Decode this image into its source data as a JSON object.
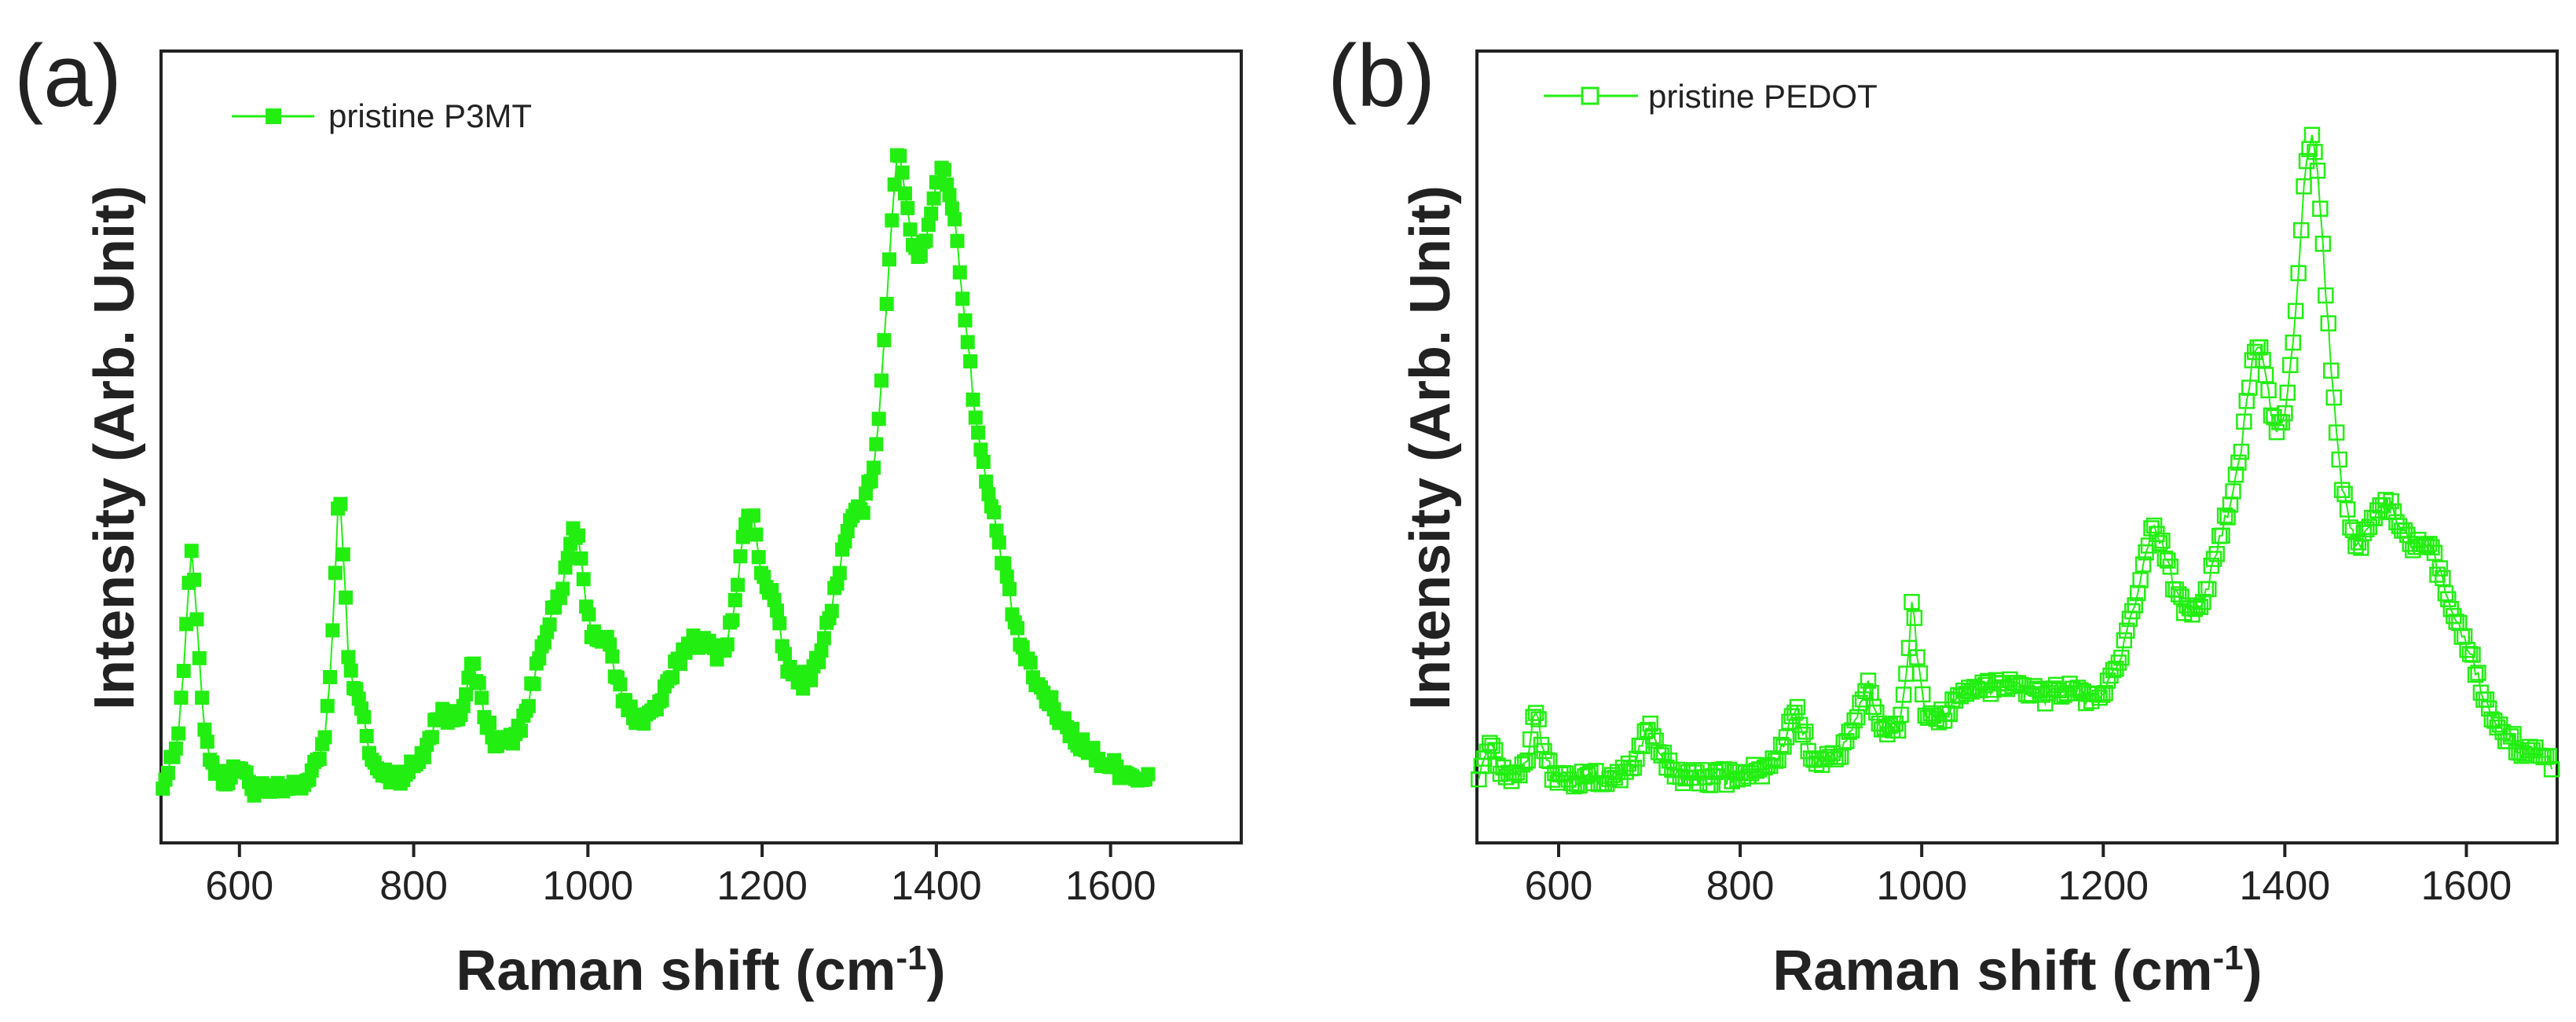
{
  "colors": {
    "series": "#22ee11",
    "axis": "#222222",
    "background": "#ffffff"
  },
  "chart_data": [
    {
      "panel_label": "(a)",
      "type": "scatter",
      "marker": "filled-square",
      "connect": true,
      "legend": {
        "label": "pristine P3MT",
        "position": "top-left"
      },
      "xlabel": "Raman shift (cm",
      "xlabel_sup": "-1",
      "xlabel_close": ")",
      "ylabel": "Intensity (Arb. Unit)",
      "xlim": [
        510,
        1750
      ],
      "ylim": [
        -0.5,
        10
      ],
      "xticks": [
        "600",
        "800",
        "1000",
        "1200",
        "1400",
        "1600"
      ],
      "x_end": 1645,
      "peaks": [
        [
          545,
          3.2,
          10
        ],
        [
          600,
          0.35,
          8
        ],
        [
          715,
          3.8,
          9
        ],
        [
          738,
          0.8,
          8
        ],
        [
          830,
          0.8,
          20
        ],
        [
          868,
          1.3,
          15
        ],
        [
          955,
          1.6,
          25
        ],
        [
          985,
          2.4,
          15
        ],
        [
          1020,
          1.2,
          20
        ],
        [
          1120,
          1.6,
          40
        ],
        [
          1185,
          2.7,
          18
        ],
        [
          1212,
          1.0,
          15
        ],
        [
          1300,
          1.9,
          30
        ],
        [
          1355,
          5.2,
          20
        ],
        [
          1410,
          7.4,
          42
        ],
        [
          1470,
          0.8,
          25
        ],
        [
          1530,
          0.3,
          40
        ]
      ],
      "baseline": 0.0
    },
    {
      "panel_label": "(b)",
      "type": "scatter",
      "marker": "open-square",
      "connect": true,
      "legend": {
        "label": "pristine PEDOT",
        "position": "top-left"
      },
      "xlabel": "Raman shift (cm",
      "xlabel_sup": "-1",
      "xlabel_close": ")",
      "ylabel": "Intensity (Arb. Unit)",
      "xlim": [
        510,
        1700
      ],
      "ylim": [
        -0.5,
        10
      ],
      "xticks": [
        "600",
        "800",
        "1000",
        "1200",
        "1400",
        "1600"
      ],
      "x_end": 1695,
      "peaks": [
        [
          525,
          0.55,
          8
        ],
        [
          575,
          1.0,
          7
        ],
        [
          700,
          0.75,
          12
        ],
        [
          860,
          0.85,
          12
        ],
        [
          940,
          1.0,
          15
        ],
        [
          990,
          1.8,
          7
        ],
        [
          1050,
          0.7,
          50
        ],
        [
          1100,
          0.7,
          40
        ],
        [
          1160,
          0.5,
          30
        ],
        [
          1255,
          2.6,
          30
        ],
        [
          1340,
          1.8,
          40
        ],
        [
          1370,
          3.2,
          20
        ],
        [
          1430,
          7.5,
          25
        ],
        [
          1510,
          2.2,
          30
        ],
        [
          1560,
          2.0,
          35
        ],
        [
          1600,
          0.6,
          20
        ]
      ],
      "baseline": 0.25
    }
  ]
}
